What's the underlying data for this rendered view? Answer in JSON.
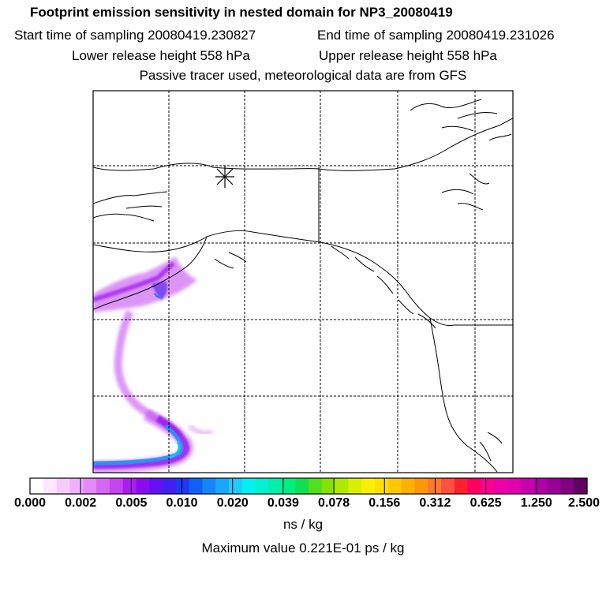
{
  "title": "Footprint emission sensitivity in nested domain for NP3_20080419",
  "sampling": {
    "start": "Start time of sampling 20080419.230827",
    "end": "End time of sampling 20080419.231026"
  },
  "release": {
    "lower": "Lower release height  558 hPa",
    "upper": "Upper release height  558 hPa"
  },
  "info": "Passive tracer used, meteorological data are from GFS",
  "colorbar": {
    "ticks": [
      "0.000",
      "0.002",
      "0.005",
      "0.010",
      "0.020",
      "0.039",
      "0.078",
      "0.156",
      "0.312",
      "0.625",
      "1.250",
      "2.500"
    ],
    "units": "ns / kg",
    "colors": [
      "#ffffff",
      "#fbe8ff",
      "#f6ccff",
      "#f0b0ff",
      "#e28af5",
      "#d766f2",
      "#c444ef",
      "#ab1cf0",
      "#8a0cf0",
      "#6410f2",
      "#4020f4",
      "#2038f6",
      "#1060f8",
      "#1486fa",
      "#18a8fb",
      "#1ccdfd",
      "#00f0f0",
      "#00f0d0",
      "#00f0a8",
      "#00ee80",
      "#10e050",
      "#50e020",
      "#86e000",
      "#b0e800",
      "#d8f000",
      "#f8f000",
      "#ffe000",
      "#ffc800",
      "#ffb000",
      "#ff9800",
      "#ff7830",
      "#ff5040",
      "#ff2030",
      "#ff0060",
      "#ff0090",
      "#f000a8",
      "#e000b0",
      "#c800b0",
      "#b000a8",
      "#980098",
      "#800080",
      "#600060"
    ]
  },
  "maximum": "Maximum value  0.221E-01 ps / kg",
  "release_marker_icon": "asterisk-icon",
  "plume_color": "#a020f0",
  "plume_core_color": "#1ca0f0"
}
